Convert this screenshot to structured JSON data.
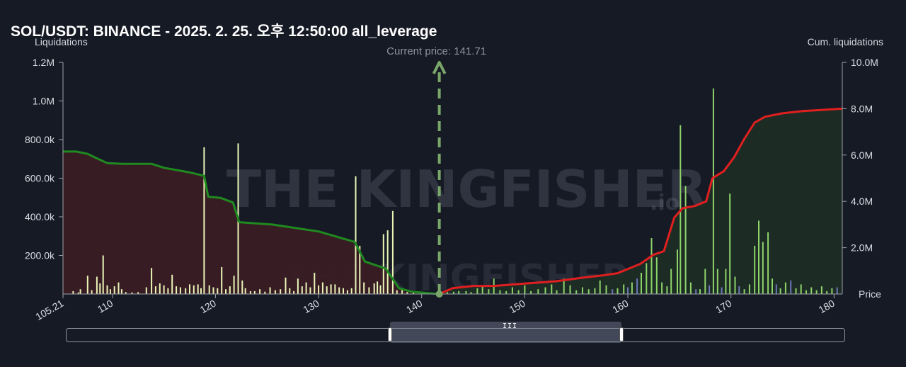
{
  "header": {
    "title": "SOL/USDT: BINANCE - 2025. 2. 25. 오후 12:50:00 all_leverage",
    "left_axis_name": "Liquidations",
    "right_axis_name": "Cum. liquidations",
    "x_axis_name": "Price"
  },
  "watermark": {
    "brand": "THE KINGFISHER",
    "suffix": ".io"
  },
  "colors": {
    "background": "#161a25",
    "short_cum_line": "#1f8a1f",
    "long_cum_line": "#e01f1f",
    "short_fill": "#3a1c24",
    "long_fill": "#1c2d24",
    "bar_light": "#e9f5b6",
    "bar_green": "#8ed36a",
    "bar_blue": "#6b78b8",
    "current_price_marker": "#7aa66a"
  },
  "chart_data": {
    "type": "bar",
    "title": "SOL/USDT: BINANCE - 2025. 2. 25. 오후 12:50:00 all_leverage",
    "xlabel": "Price",
    "ylabel": "Liquidations",
    "y2label": "Cum. liquidations",
    "xlim": [
      105.21,
      180.8
    ],
    "ylim": [
      0,
      1200000
    ],
    "y2lim": [
      0,
      10000000
    ],
    "x_ticks": [
      "105.21",
      "110",
      "120",
      "130",
      "140",
      "150",
      "160",
      "170",
      "180"
    ],
    "x_tick_values": [
      105.21,
      110,
      120,
      130,
      140,
      150,
      160,
      170,
      180
    ],
    "y_ticks": [
      "1.2M",
      "1.0M",
      "800.0k",
      "600.0k",
      "400.0k",
      "200.0k"
    ],
    "y_tick_values": [
      1200000,
      1000000,
      800000,
      600000,
      400000,
      200000
    ],
    "y2_ticks": [
      "10.0M",
      "8.0M",
      "6.0M",
      "4.0M",
      "2.0M"
    ],
    "y2_tick_values": [
      10000000,
      8000000,
      6000000,
      4000000,
      2000000
    ],
    "current_price": 141.71,
    "current_price_label": "Current price: 141.71",
    "grid": false,
    "bars": [
      {
        "x": 106.2,
        "v": 15000,
        "c": "light"
      },
      {
        "x": 106.7,
        "v": 8000,
        "c": "light"
      },
      {
        "x": 106.9,
        "v": 25000,
        "c": "light"
      },
      {
        "x": 107.6,
        "v": 95000,
        "c": "light"
      },
      {
        "x": 108.0,
        "v": 20000,
        "c": "light"
      },
      {
        "x": 108.5,
        "v": 90000,
        "c": "light"
      },
      {
        "x": 108.8,
        "v": 55000,
        "c": "light"
      },
      {
        "x": 109.1,
        "v": 200000,
        "c": "light"
      },
      {
        "x": 109.5,
        "v": 45000,
        "c": "light"
      },
      {
        "x": 109.8,
        "v": 25000,
        "c": "light"
      },
      {
        "x": 110.2,
        "v": 40000,
        "c": "light"
      },
      {
        "x": 110.6,
        "v": 60000,
        "c": "light"
      },
      {
        "x": 110.9,
        "v": 25000,
        "c": "light"
      },
      {
        "x": 111.3,
        "v": 10000,
        "c": "light"
      },
      {
        "x": 111.9,
        "v": 8000,
        "c": "light"
      },
      {
        "x": 112.5,
        "v": 10000,
        "c": "light"
      },
      {
        "x": 113.3,
        "v": 35000,
        "c": "light"
      },
      {
        "x": 113.8,
        "v": 135000,
        "c": "light"
      },
      {
        "x": 114.2,
        "v": 40000,
        "c": "light"
      },
      {
        "x": 114.6,
        "v": 55000,
        "c": "light"
      },
      {
        "x": 115.0,
        "v": 45000,
        "c": "light"
      },
      {
        "x": 115.4,
        "v": 30000,
        "c": "light"
      },
      {
        "x": 115.8,
        "v": 100000,
        "c": "light"
      },
      {
        "x": 116.2,
        "v": 40000,
        "c": "light"
      },
      {
        "x": 116.6,
        "v": 35000,
        "c": "light"
      },
      {
        "x": 117.1,
        "v": 30000,
        "c": "light"
      },
      {
        "x": 117.5,
        "v": 50000,
        "c": "light"
      },
      {
        "x": 117.9,
        "v": 45000,
        "c": "light"
      },
      {
        "x": 118.3,
        "v": 50000,
        "c": "light"
      },
      {
        "x": 118.6,
        "v": 30000,
        "c": "light"
      },
      {
        "x": 118.9,
        "v": 760000,
        "c": "light"
      },
      {
        "x": 119.4,
        "v": 45000,
        "c": "light"
      },
      {
        "x": 119.8,
        "v": 35000,
        "c": "light"
      },
      {
        "x": 120.2,
        "v": 30000,
        "c": "light"
      },
      {
        "x": 120.6,
        "v": 140000,
        "c": "light"
      },
      {
        "x": 121.0,
        "v": 25000,
        "c": "light"
      },
      {
        "x": 121.4,
        "v": 40000,
        "c": "light"
      },
      {
        "x": 121.8,
        "v": 95000,
        "c": "light"
      },
      {
        "x": 122.2,
        "v": 780000,
        "c": "light"
      },
      {
        "x": 122.6,
        "v": 70000,
        "c": "light"
      },
      {
        "x": 122.9,
        "v": 30000,
        "c": "light"
      },
      {
        "x": 123.4,
        "v": 15000,
        "c": "light"
      },
      {
        "x": 123.8,
        "v": 15000,
        "c": "light"
      },
      {
        "x": 124.3,
        "v": 25000,
        "c": "light"
      },
      {
        "x": 124.8,
        "v": 12000,
        "c": "light"
      },
      {
        "x": 125.3,
        "v": 35000,
        "c": "light"
      },
      {
        "x": 125.8,
        "v": 20000,
        "c": "light"
      },
      {
        "x": 126.3,
        "v": 25000,
        "c": "light"
      },
      {
        "x": 126.8,
        "v": 85000,
        "c": "light"
      },
      {
        "x": 127.2,
        "v": 30000,
        "c": "light"
      },
      {
        "x": 127.6,
        "v": 15000,
        "c": "light"
      },
      {
        "x": 128.0,
        "v": 80000,
        "c": "light"
      },
      {
        "x": 128.4,
        "v": 40000,
        "c": "light"
      },
      {
        "x": 128.8,
        "v": 60000,
        "c": "light"
      },
      {
        "x": 129.2,
        "v": 35000,
        "c": "light"
      },
      {
        "x": 129.6,
        "v": 110000,
        "c": "light"
      },
      {
        "x": 130.0,
        "v": 45000,
        "c": "light"
      },
      {
        "x": 130.4,
        "v": 60000,
        "c": "light"
      },
      {
        "x": 130.8,
        "v": 40000,
        "c": "light"
      },
      {
        "x": 131.2,
        "v": 50000,
        "c": "light"
      },
      {
        "x": 131.6,
        "v": 50000,
        "c": "light"
      },
      {
        "x": 132.0,
        "v": 35000,
        "c": "light"
      },
      {
        "x": 132.4,
        "v": 30000,
        "c": "light"
      },
      {
        "x": 132.8,
        "v": 20000,
        "c": "light"
      },
      {
        "x": 133.2,
        "v": 30000,
        "c": "light"
      },
      {
        "x": 133.6,
        "v": 610000,
        "c": "light"
      },
      {
        "x": 134.0,
        "v": 250000,
        "c": "light"
      },
      {
        "x": 134.4,
        "v": 60000,
        "c": "light"
      },
      {
        "x": 134.9,
        "v": 35000,
        "c": "light"
      },
      {
        "x": 135.4,
        "v": 55000,
        "c": "light"
      },
      {
        "x": 135.7,
        "v": 65000,
        "c": "light"
      },
      {
        "x": 136.0,
        "v": 45000,
        "c": "light"
      },
      {
        "x": 136.3,
        "v": 310000,
        "c": "light"
      },
      {
        "x": 136.7,
        "v": 330000,
        "c": "light"
      },
      {
        "x": 137.2,
        "v": 430000,
        "c": "light"
      },
      {
        "x": 137.6,
        "v": 20000,
        "c": "light"
      },
      {
        "x": 138.1,
        "v": 30000,
        "c": "light"
      },
      {
        "x": 138.6,
        "v": 10000,
        "c": "light"
      },
      {
        "x": 139.2,
        "v": 10000,
        "c": "light"
      },
      {
        "x": 142.5,
        "v": 10000,
        "c": "green"
      },
      {
        "x": 143.1,
        "v": 12000,
        "c": "green"
      },
      {
        "x": 143.6,
        "v": 15000,
        "c": "green"
      },
      {
        "x": 144.3,
        "v": 15000,
        "c": "green"
      },
      {
        "x": 144.8,
        "v": 10000,
        "c": "green"
      },
      {
        "x": 145.4,
        "v": 30000,
        "c": "green"
      },
      {
        "x": 145.9,
        "v": 45000,
        "c": "green"
      },
      {
        "x": 146.5,
        "v": 25000,
        "c": "green"
      },
      {
        "x": 147.0,
        "v": 80000,
        "c": "green"
      },
      {
        "x": 147.6,
        "v": 20000,
        "c": "green"
      },
      {
        "x": 148.2,
        "v": 15000,
        "c": "green"
      },
      {
        "x": 148.8,
        "v": 35000,
        "c": "green"
      },
      {
        "x": 149.4,
        "v": 20000,
        "c": "green"
      },
      {
        "x": 150.0,
        "v": 45000,
        "c": "green"
      },
      {
        "x": 150.6,
        "v": 15000,
        "c": "green"
      },
      {
        "x": 151.3,
        "v": 25000,
        "c": "green"
      },
      {
        "x": 152.0,
        "v": 35000,
        "c": "green"
      },
      {
        "x": 152.6,
        "v": 50000,
        "c": "green"
      },
      {
        "x": 153.1,
        "v": 20000,
        "c": "green"
      },
      {
        "x": 153.8,
        "v": 80000,
        "c": "green"
      },
      {
        "x": 154.4,
        "v": 45000,
        "c": "green"
      },
      {
        "x": 155.0,
        "v": 20000,
        "c": "green"
      },
      {
        "x": 155.6,
        "v": 35000,
        "c": "green"
      },
      {
        "x": 156.2,
        "v": 25000,
        "c": "green"
      },
      {
        "x": 156.8,
        "v": 30000,
        "c": "green"
      },
      {
        "x": 157.3,
        "v": 70000,
        "c": "green"
      },
      {
        "x": 157.9,
        "v": 45000,
        "c": "green"
      },
      {
        "x": 158.5,
        "v": 25000,
        "c": "blue"
      },
      {
        "x": 159.0,
        "v": 30000,
        "c": "green"
      },
      {
        "x": 159.6,
        "v": 50000,
        "c": "green"
      },
      {
        "x": 160.0,
        "v": 35000,
        "c": "blue"
      },
      {
        "x": 160.4,
        "v": 60000,
        "c": "green"
      },
      {
        "x": 160.9,
        "v": 80000,
        "c": "blue"
      },
      {
        "x": 161.3,
        "v": 110000,
        "c": "green"
      },
      {
        "x": 161.8,
        "v": 160000,
        "c": "green"
      },
      {
        "x": 162.3,
        "v": 290000,
        "c": "green"
      },
      {
        "x": 162.8,
        "v": 190000,
        "c": "green"
      },
      {
        "x": 163.3,
        "v": 60000,
        "c": "green"
      },
      {
        "x": 163.8,
        "v": 40000,
        "c": "green"
      },
      {
        "x": 164.2,
        "v": 130000,
        "c": "green"
      },
      {
        "x": 164.8,
        "v": 230000,
        "c": "green"
      },
      {
        "x": 165.1,
        "v": 875000,
        "c": "green"
      },
      {
        "x": 165.6,
        "v": 560000,
        "c": "green"
      },
      {
        "x": 166.1,
        "v": 60000,
        "c": "green"
      },
      {
        "x": 166.6,
        "v": 25000,
        "c": "blue"
      },
      {
        "x": 167.0,
        "v": 25000,
        "c": "green"
      },
      {
        "x": 167.5,
        "v": 130000,
        "c": "green"
      },
      {
        "x": 167.9,
        "v": 45000,
        "c": "blue"
      },
      {
        "x": 168.3,
        "v": 1065000,
        "c": "green"
      },
      {
        "x": 168.7,
        "v": 130000,
        "c": "green"
      },
      {
        "x": 169.1,
        "v": 35000,
        "c": "blue"
      },
      {
        "x": 169.5,
        "v": 130000,
        "c": "green"
      },
      {
        "x": 169.9,
        "v": 520000,
        "c": "green"
      },
      {
        "x": 170.4,
        "v": 90000,
        "c": "green"
      },
      {
        "x": 170.8,
        "v": 40000,
        "c": "blue"
      },
      {
        "x": 171.3,
        "v": 25000,
        "c": "green"
      },
      {
        "x": 171.8,
        "v": 50000,
        "c": "green"
      },
      {
        "x": 172.3,
        "v": 250000,
        "c": "green"
      },
      {
        "x": 172.7,
        "v": 380000,
        "c": "green"
      },
      {
        "x": 173.1,
        "v": 270000,
        "c": "green"
      },
      {
        "x": 173.6,
        "v": 320000,
        "c": "green"
      },
      {
        "x": 174.0,
        "v": 80000,
        "c": "green"
      },
      {
        "x": 174.4,
        "v": 50000,
        "c": "blue"
      },
      {
        "x": 174.8,
        "v": 30000,
        "c": "green"
      },
      {
        "x": 175.3,
        "v": 60000,
        "c": "green"
      },
      {
        "x": 175.8,
        "v": 70000,
        "c": "blue"
      },
      {
        "x": 176.3,
        "v": 30000,
        "c": "green"
      },
      {
        "x": 176.8,
        "v": 50000,
        "c": "green"
      },
      {
        "x": 177.3,
        "v": 20000,
        "c": "green"
      },
      {
        "x": 177.8,
        "v": 35000,
        "c": "green"
      },
      {
        "x": 178.3,
        "v": 20000,
        "c": "green"
      },
      {
        "x": 178.8,
        "v": 40000,
        "c": "green"
      },
      {
        "x": 179.3,
        "v": 15000,
        "c": "green"
      },
      {
        "x": 179.8,
        "v": 30000,
        "c": "green"
      },
      {
        "x": 180.3,
        "v": 35000,
        "c": "blue"
      }
    ],
    "series": [
      {
        "kind": "short_cumulative",
        "points": [
          [
            105.21,
            6150000
          ],
          [
            106.5,
            6150000
          ],
          [
            107.6,
            6050000
          ],
          [
            108.3,
            5900000
          ],
          [
            109.5,
            5650000
          ],
          [
            111.0,
            5620000
          ],
          [
            113.8,
            5620000
          ],
          [
            115.0,
            5450000
          ],
          [
            117.5,
            5250000
          ],
          [
            118.9,
            5100000
          ],
          [
            119.3,
            4200000
          ],
          [
            120.5,
            4150000
          ],
          [
            121.7,
            3950000
          ],
          [
            122.3,
            3100000
          ],
          [
            125.5,
            3000000
          ],
          [
            130.0,
            2700000
          ],
          [
            133.5,
            2250000
          ],
          [
            134.5,
            1400000
          ],
          [
            136.5,
            1100000
          ],
          [
            137.8,
            250000
          ],
          [
            139.0,
            100000
          ],
          [
            141.71,
            0
          ]
        ]
      },
      {
        "kind": "long_cumulative",
        "points": [
          [
            141.71,
            0
          ],
          [
            143.0,
            250000
          ],
          [
            145.0,
            350000
          ],
          [
            147.0,
            350000
          ],
          [
            150.0,
            450000
          ],
          [
            153.0,
            550000
          ],
          [
            155.5,
            700000
          ],
          [
            157.5,
            800000
          ],
          [
            159.0,
            900000
          ],
          [
            161.2,
            1300000
          ],
          [
            162.5,
            1700000
          ],
          [
            163.5,
            1850000
          ],
          [
            164.5,
            3300000
          ],
          [
            165.3,
            3700000
          ],
          [
            166.5,
            3800000
          ],
          [
            167.6,
            4000000
          ],
          [
            168.2,
            5000000
          ],
          [
            169.3,
            5300000
          ],
          [
            170.3,
            5900000
          ],
          [
            171.3,
            6700000
          ],
          [
            172.3,
            7400000
          ],
          [
            173.3,
            7650000
          ],
          [
            175.0,
            7800000
          ],
          [
            177.0,
            7900000
          ],
          [
            180.8,
            8000000
          ]
        ]
      }
    ]
  },
  "scrollbar": {
    "grip_glyph": "III"
  }
}
